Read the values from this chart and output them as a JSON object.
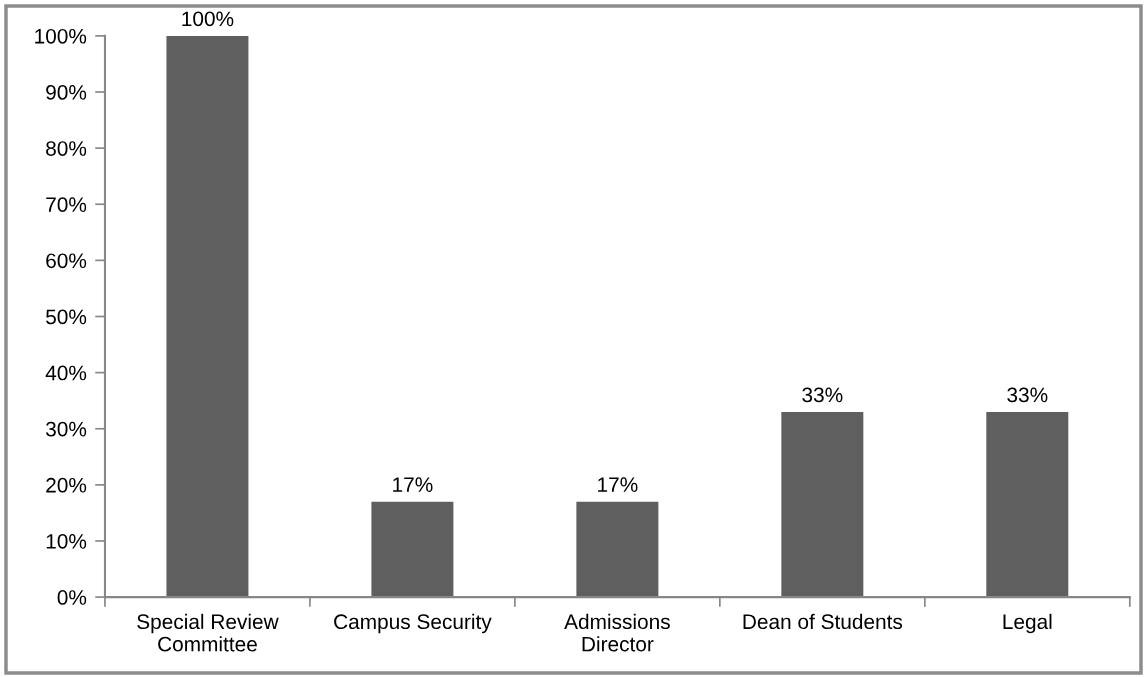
{
  "chart_data": {
    "type": "bar",
    "categories": [
      "Special Review\nCommittee",
      "Campus Security",
      "Admissions\nDirector",
      "Dean of Students",
      "Legal"
    ],
    "values": [
      100,
      17,
      17,
      33,
      33
    ],
    "value_labels": [
      "100%",
      "17%",
      "17%",
      "33%",
      "33%"
    ],
    "color": "#5f5f5f",
    "ylim": [
      0,
      100
    ],
    "yticks": [
      {
        "value": 0,
        "label": "0%"
      },
      {
        "value": 10,
        "label": "10%"
      },
      {
        "value": 20,
        "label": "20%"
      },
      {
        "value": 30,
        "label": "30%"
      },
      {
        "value": 40,
        "label": "40%"
      },
      {
        "value": 50,
        "label": "50%"
      },
      {
        "value": 60,
        "label": "60%"
      },
      {
        "value": 70,
        "label": "70%"
      },
      {
        "value": 80,
        "label": "80%"
      },
      {
        "value": 90,
        "label": "90%"
      },
      {
        "value": 100,
        "label": "100%"
      }
    ],
    "grid": false,
    "legend": false
  }
}
